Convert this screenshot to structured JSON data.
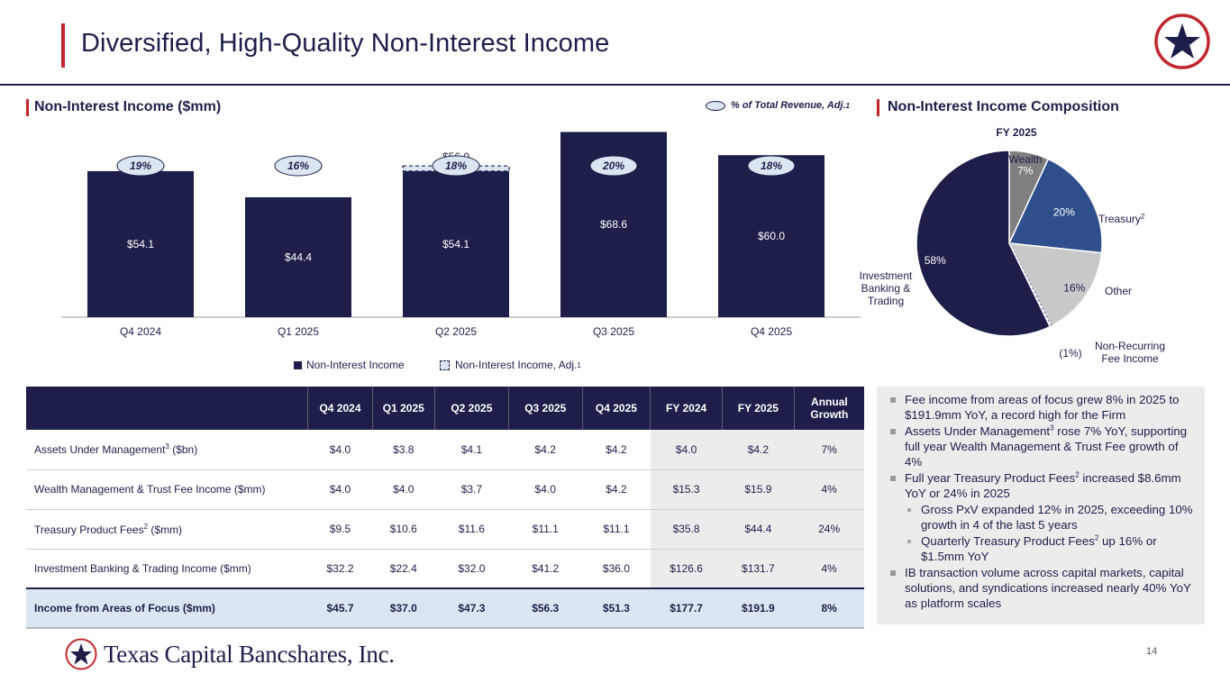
{
  "page": {
    "title": "Diversified, High-Quality Non-Interest Income",
    "page_number": "14",
    "footer_logo_text": "Texas Capital Bancshares, Inc."
  },
  "colors": {
    "navy": "#1d1f4a",
    "red": "#c0272d",
    "blue_mid": "#2e4f8c",
    "gray_dark": "#7f7f7f",
    "gray_light": "#c9c9c9",
    "adj_fill": "#dce6f2"
  },
  "left_section": {
    "title": "Non-Interest Income ($mm)",
    "pct_legend_label": "% of Total Revenue, Adj.",
    "pct_legend_sup": "1"
  },
  "right_section": {
    "title": "Non-Interest Income Composition"
  },
  "bar_legend": {
    "solid_label": "Non-Interest Income",
    "adj_label": "Non-Interest Income, Adj.",
    "adj_sup": "1"
  },
  "chart_data": [
    {
      "type": "bar",
      "categories": [
        "Q4 2024",
        "Q1 2025",
        "Q2 2025",
        "Q3 2025",
        "Q4 2025"
      ],
      "series": [
        {
          "name": "Non-Interest Income",
          "values": [
            54.1,
            44.4,
            54.1,
            68.6,
            60.0
          ],
          "labels": [
            "$54.1",
            "$44.4",
            "$54.1",
            "$68.6",
            "$60.0"
          ]
        },
        {
          "name": "Non-Interest Income, Adj.",
          "values": [
            null,
            null,
            56.0,
            null,
            null
          ],
          "labels": [
            null,
            null,
            "$56.0",
            null,
            null
          ]
        }
      ],
      "pct_of_total_revenue": [
        "19%",
        "16%",
        "18%",
        "20%",
        "18%"
      ],
      "ylim": [
        0,
        75
      ]
    },
    {
      "type": "pie",
      "title": "FY 2025",
      "slices": [
        {
          "name": "Wealth",
          "value": 7,
          "label": "7%",
          "color": "#7f7f7f"
        },
        {
          "name": "Treasury",
          "name_sup": "2",
          "value": 20,
          "label": "20%",
          "color": "#2e4f8c"
        },
        {
          "name": "Other",
          "value": 16,
          "label": "16%",
          "color": "#c9c9c9"
        },
        {
          "name": "Non-Recurring Fee Income",
          "value": -1,
          "label": "(1%)",
          "color": "#dce6f2"
        },
        {
          "name": "Investment Banking & Trading",
          "value": 58,
          "label": "58%",
          "color": "#1d1f4a"
        }
      ]
    }
  ],
  "table": {
    "columns": [
      "",
      "Q4 2024",
      "Q1 2025",
      "Q2 2025",
      "Q3 2025",
      "Q4 2025",
      "FY 2024",
      "FY 2025",
      "Annual Growth"
    ],
    "rows": [
      {
        "label": "Assets Under Management",
        "label_sup": "3",
        "label_suffix": " ($bn)",
        "values": [
          "$4.0",
          "$3.8",
          "$4.1",
          "$4.2",
          "$4.2",
          "$4.0",
          "$4.2",
          "7%"
        ]
      },
      {
        "label": "Wealth Management & Trust Fee Income ($mm)",
        "label_sup": "",
        "label_suffix": "",
        "values": [
          "$4.0",
          "$4.0",
          "$3.7",
          "$4.0",
          "$4.2",
          "$15.3",
          "$15.9",
          "4%"
        ]
      },
      {
        "label": "Treasury Product Fees",
        "label_sup": "2",
        "label_suffix": " ($mm)",
        "values": [
          "$9.5",
          "$10.6",
          "$11.6",
          "$11.1",
          "$11.1",
          "$35.8",
          "$44.4",
          "24%"
        ]
      },
      {
        "label": "Investment Banking & Trading Income ($mm)",
        "label_sup": "",
        "label_suffix": "",
        "values": [
          "$32.2",
          "$22.4",
          "$32.0",
          "$41.2",
          "$36.0",
          "$126.6",
          "$131.7",
          "4%"
        ]
      },
      {
        "label": "Income from Areas of Focus ($mm)",
        "label_sup": "",
        "label_suffix": "",
        "values": [
          "$45.7",
          "$37.0",
          "$47.3",
          "$56.3",
          "$51.3",
          "$177.7",
          "$191.9",
          "8%"
        ],
        "total": true
      }
    ]
  },
  "bullets": [
    {
      "level": 1,
      "parts": [
        "Fee income from areas of focus grew 8% in 2025 to $191.9mm YoY, a record high for the Firm"
      ]
    },
    {
      "level": 1,
      "parts": [
        "Assets Under Management",
        "3",
        " rose 7% YoY, supporting full year Wealth Management & Trust Fee growth of 4%"
      ]
    },
    {
      "level": 1,
      "parts": [
        "Full year Treasury Product Fees",
        "2",
        " increased $8.6mm YoY or 24% in 2025"
      ]
    },
    {
      "level": 2,
      "parts": [
        "Gross PxV expanded 12% in 2025, exceeding 10% growth in 4 of the last 5 years"
      ]
    },
    {
      "level": 2,
      "parts": [
        "Quarterly Treasury Product Fees",
        "2",
        " up 16% or $1.5mm YoY"
      ]
    },
    {
      "level": 1,
      "parts": [
        "IB transaction volume across capital markets, capital solutions, and syndications increased nearly 40% YoY as platform scales"
      ]
    }
  ]
}
